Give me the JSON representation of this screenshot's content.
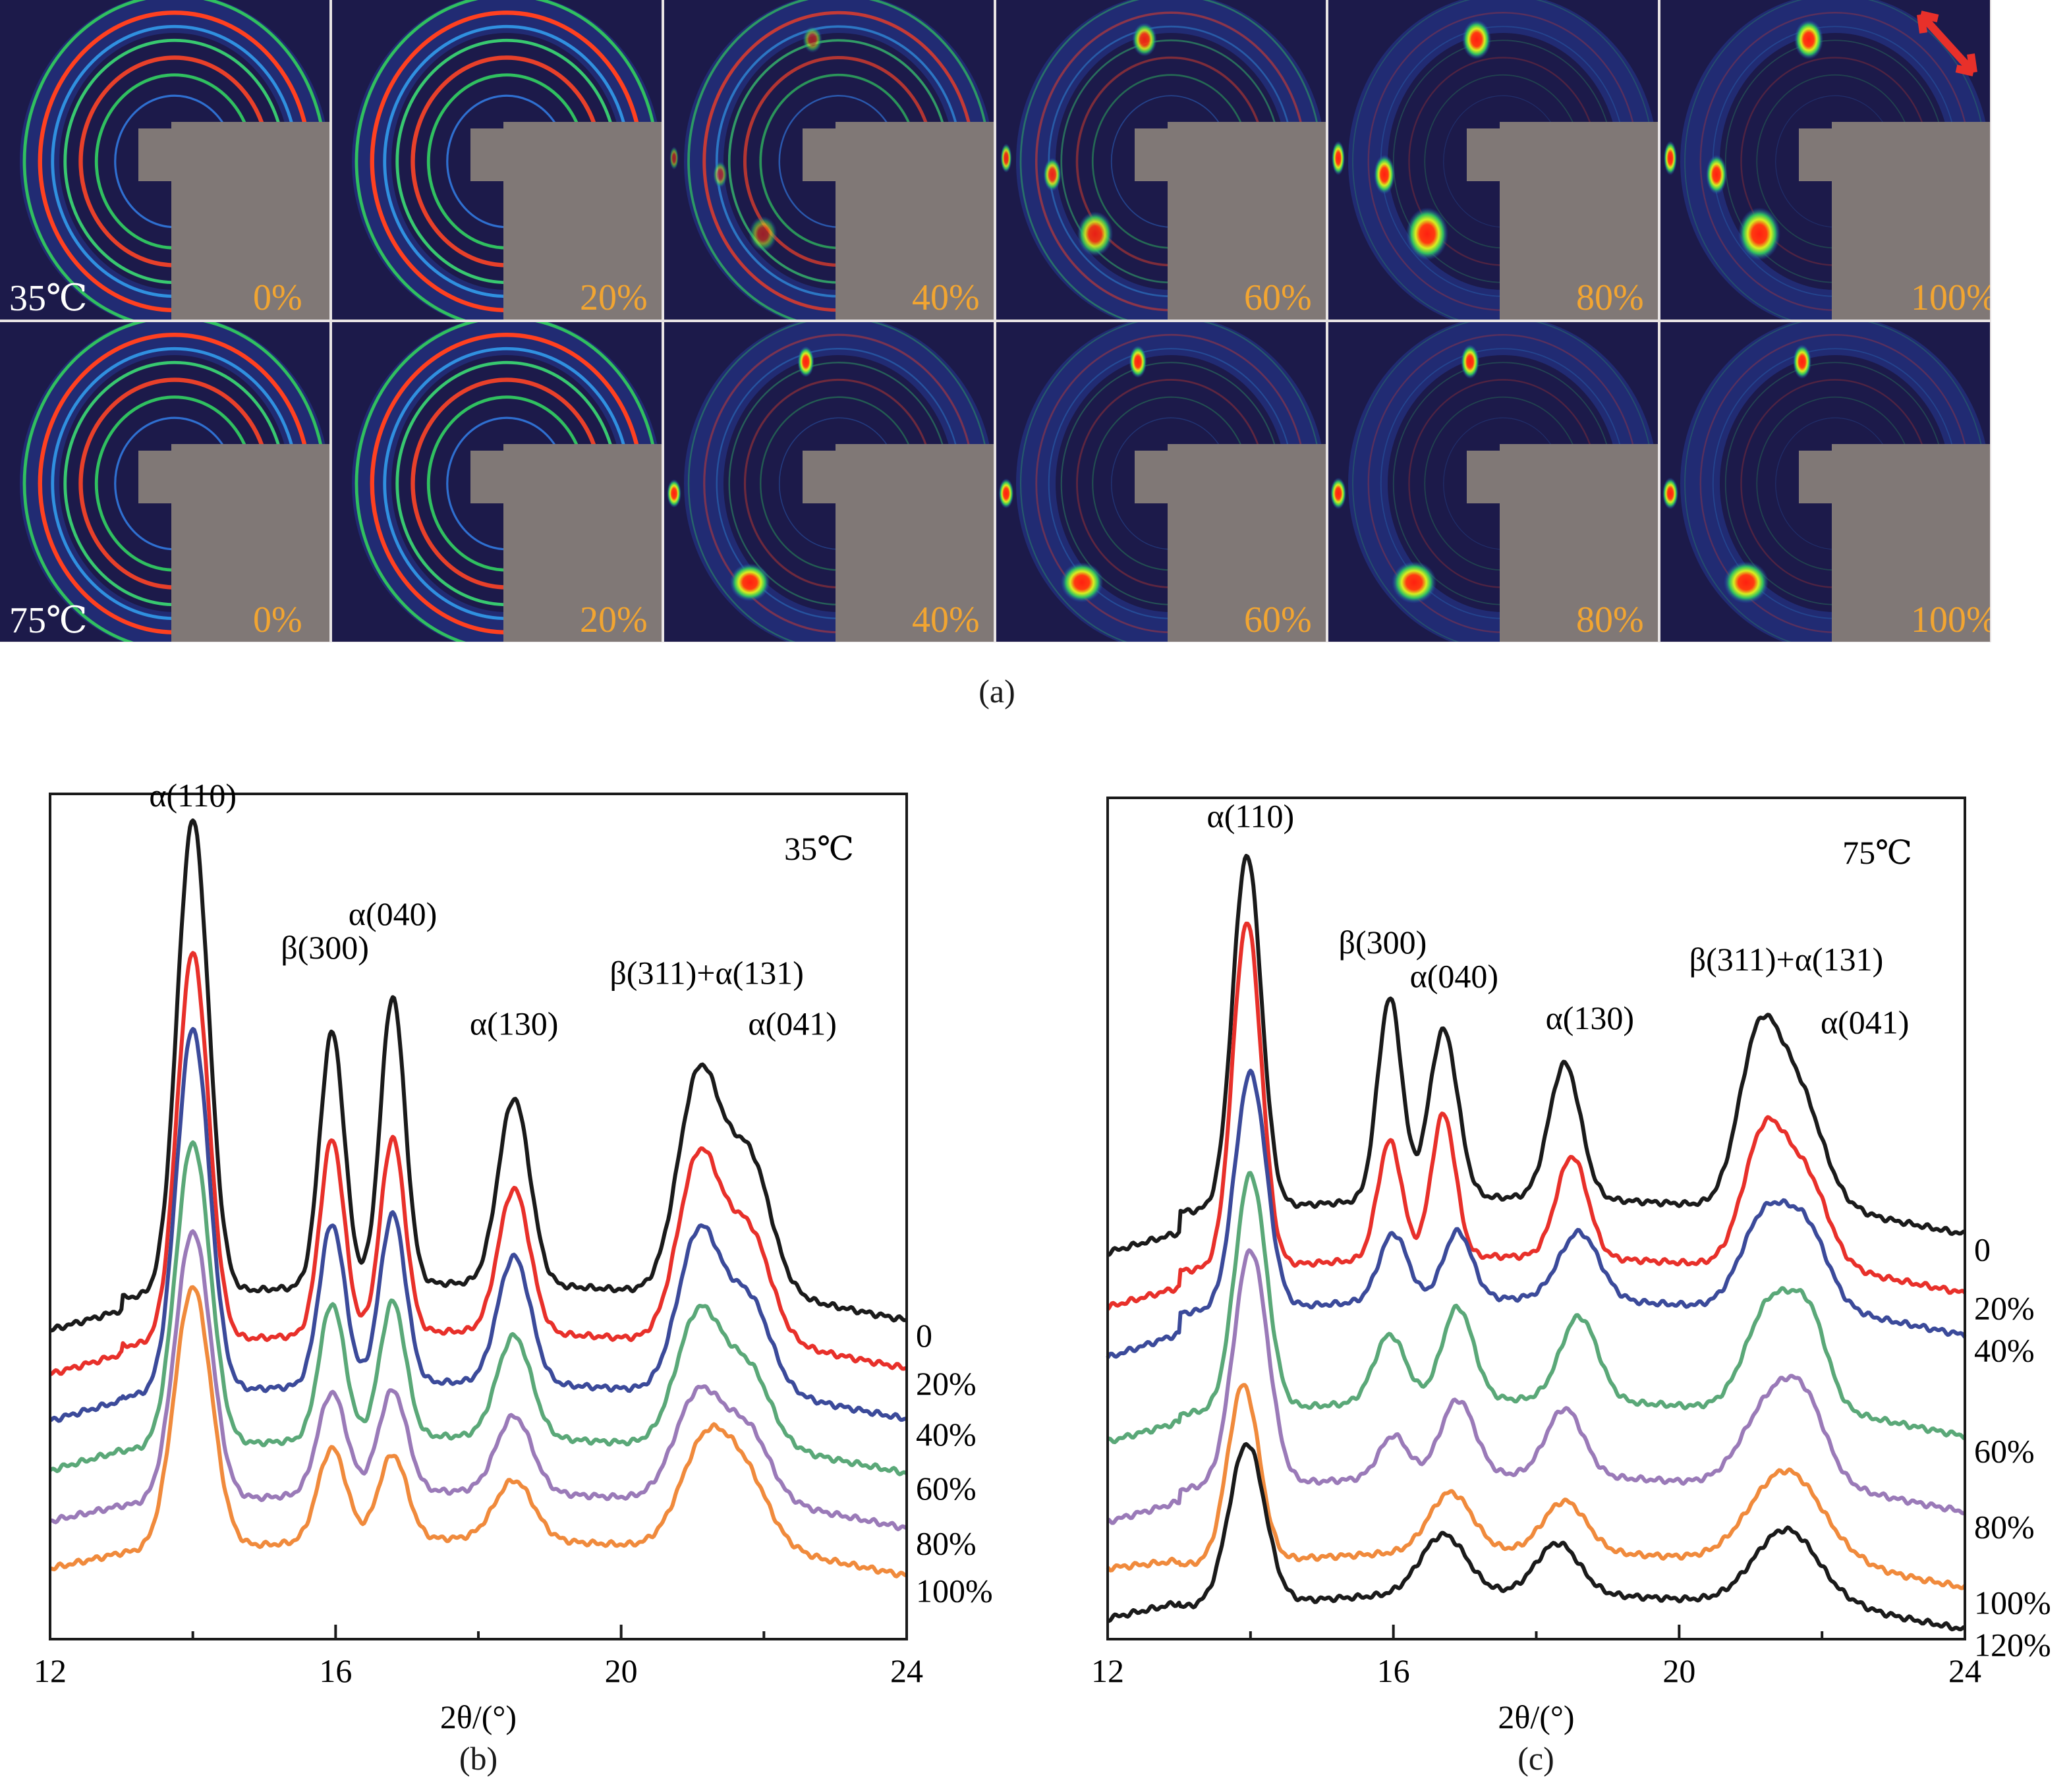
{
  "figure": {
    "panel_a_caption": "(a)",
    "panel_b_caption": "(b)",
    "panel_c_caption": "(c)"
  },
  "waxd_grid": {
    "rows": [
      {
        "temperature": "35℃",
        "panels": [
          {
            "strain": "0%",
            "pattern": "rings",
            "spots": 0.0
          },
          {
            "strain": "20%",
            "pattern": "rings",
            "spots": 0.0
          },
          {
            "strain": "40%",
            "pattern": "mixed",
            "spots": 0.35
          },
          {
            "strain": "60%",
            "pattern": "spots",
            "spots": 0.7
          },
          {
            "strain": "80%",
            "pattern": "spots",
            "spots": 1.0
          },
          {
            "strain": "100%",
            "pattern": "spots",
            "spots": 1.0,
            "stretch_arrow": true
          }
        ]
      },
      {
        "temperature": "75℃",
        "panels": [
          {
            "strain": "0%",
            "pattern": "rings",
            "spots": 0.0
          },
          {
            "strain": "20%",
            "pattern": "rings",
            "spots": 0.0
          },
          {
            "strain": "40%",
            "pattern": "spots",
            "spots": 0.8
          },
          {
            "strain": "60%",
            "pattern": "spots",
            "spots": 0.9
          },
          {
            "strain": "80%",
            "pattern": "spots",
            "spots": 1.0
          },
          {
            "strain": "100%",
            "pattern": "spots",
            "spots": 1.0
          }
        ]
      }
    ],
    "colors": {
      "stretch_arrow": "#e8302a",
      "strain_label": "#f2a531",
      "beamstop": "#807876"
    }
  },
  "chart_data": [
    {
      "id": "b",
      "type": "line",
      "title": "35℃",
      "xlabel": "2θ/(°)",
      "ylabel": "",
      "xlim": [
        12,
        24
      ],
      "ylim": [
        0,
        100
      ],
      "y_units": "a.u. (stacked, offset)",
      "xticks_major": [
        12,
        16,
        20,
        24
      ],
      "xticks_minor": [
        14,
        18,
        22
      ],
      "xtick_labels": [
        "12",
        "16",
        "20",
        "24"
      ],
      "grid": false,
      "annotations": [
        {
          "text": "α(110)",
          "x": 14.0,
          "y": 98.5
        },
        {
          "text": "β(300)",
          "x": 15.85,
          "y": 80.5
        },
        {
          "text": "α(040)",
          "x": 16.8,
          "y": 84.5
        },
        {
          "text": "α(130)",
          "x": 18.5,
          "y": 71.5
        },
        {
          "text": "β(311)+α(131)",
          "x": 21.2,
          "y": 77.5
        },
        {
          "text": "α(041)",
          "x": 22.4,
          "y": 71.5
        }
      ],
      "series": [
        {
          "name": "0",
          "color": "#1a1a1a",
          "baseline": 39.6,
          "peaks": [
            [
              14.0,
              56,
              0.22
            ],
            [
              15.95,
              30,
              0.17
            ],
            [
              16.8,
              34,
              0.17
            ],
            [
              18.5,
              22,
              0.22
            ],
            [
              21.1,
              26,
              0.3
            ],
            [
              21.8,
              16,
              0.3
            ]
          ],
          "edge": [
            [
              12.0,
              -3.5
            ],
            [
              13.0,
              -1.5
            ]
          ]
        },
        {
          "name": "20%",
          "color": "#e8302a",
          "baseline": 33.9,
          "peaks": [
            [
              14.0,
              46,
              0.22
            ],
            [
              15.95,
              23,
              0.17
            ],
            [
              16.8,
              23,
              0.17
            ],
            [
              18.5,
              17,
              0.22
            ],
            [
              21.1,
              22,
              0.3
            ],
            [
              21.8,
              13,
              0.3
            ]
          ],
          "edge": [
            [
              12.0,
              -3.0
            ],
            [
              13.0,
              -1.0
            ]
          ]
        },
        {
          "name": "40%",
          "color": "#3b4a9a",
          "baseline": 27.9,
          "peaks": [
            [
              14.0,
              43,
              0.23
            ],
            [
              15.95,
              19,
              0.18
            ],
            [
              16.8,
              20,
              0.18
            ],
            [
              18.5,
              15,
              0.23
            ],
            [
              21.1,
              19,
              0.3
            ],
            [
              21.8,
              11,
              0.3
            ]
          ],
          "edge": [
            [
              12.0,
              -2.5
            ],
            [
              13.0,
              -0.5
            ]
          ]
        },
        {
          "name": "60%",
          "color": "#5aa878",
          "baseline": 21.5,
          "peaks": [
            [
              14.0,
              36,
              0.24
            ],
            [
              15.95,
              16,
              0.18
            ],
            [
              16.8,
              16,
              0.18
            ],
            [
              18.5,
              12,
              0.24
            ],
            [
              21.1,
              16,
              0.32
            ],
            [
              21.8,
              9,
              0.3
            ]
          ],
          "edge": [
            [
              12.0,
              -2.0
            ],
            [
              13.0,
              0.0
            ]
          ]
        },
        {
          "name": "80%",
          "color": "#9a7ab8",
          "baseline": 15.0,
          "peaks": [
            [
              14.0,
              32,
              0.25
            ],
            [
              15.95,
              12,
              0.2
            ],
            [
              16.8,
              12,
              0.2
            ],
            [
              18.5,
              9,
              0.25
            ],
            [
              21.1,
              13,
              0.34
            ],
            [
              21.8,
              8,
              0.3
            ]
          ],
          "edge": [
            [
              12.0,
              -1.5
            ],
            [
              13.0,
              0.0
            ]
          ]
        },
        {
          "name": "100%",
          "color": "#f08a3c",
          "baseline": 9.4,
          "peaks": [
            [
              14.0,
              31,
              0.26
            ],
            [
              15.95,
              11,
              0.2
            ],
            [
              16.8,
              10,
              0.2
            ],
            [
              18.5,
              7,
              0.27
            ],
            [
              21.2,
              13,
              0.36
            ],
            [
              21.8,
              7,
              0.32
            ]
          ],
          "edge": [
            [
              12.0,
              -1.5
            ],
            [
              13.0,
              0.0
            ]
          ]
        }
      ]
    },
    {
      "id": "c",
      "type": "line",
      "title": "75℃",
      "xlabel": "2θ/(°)",
      "ylabel": "",
      "xlim": [
        12,
        24
      ],
      "ylim": [
        0,
        100
      ],
      "y_units": "a.u. (stacked, offset)",
      "xticks_major": [
        12,
        16,
        20,
        24
      ],
      "xticks_minor": [
        14,
        18,
        22
      ],
      "xtick_labels": [
        "12",
        "16",
        "20",
        "24"
      ],
      "grid": false,
      "annotations": [
        {
          "text": "α(110)",
          "x": 14.0,
          "y": 96.5
        },
        {
          "text": "β(300)",
          "x": 15.85,
          "y": 81.5
        },
        {
          "text": "α(040)",
          "x": 16.85,
          "y": 77.5
        },
        {
          "text": "α(130)",
          "x": 18.75,
          "y": 72.5
        },
        {
          "text": "β(311)+α(131)",
          "x": 21.5,
          "y": 79.5
        },
        {
          "text": "α(041)",
          "x": 22.6,
          "y": 72.0
        }
      ],
      "series": [
        {
          "name": "0",
          "color": "#1a1a1a",
          "baseline": 50.0,
          "peaks": [
            [
              13.95,
              42,
              0.2
            ],
            [
              15.95,
              24,
              0.17
            ],
            [
              16.7,
              20,
              0.2
            ],
            [
              18.4,
              16,
              0.22
            ],
            [
              21.1,
              18,
              0.28
            ],
            [
              21.65,
              14,
              0.35
            ]
          ],
          "edge": [
            [
              12.0,
              -4.5
            ],
            [
              13.0,
              -2.5
            ]
          ]
        },
        {
          "name": "20%",
          "color": "#e8302a",
          "baseline": 43.0,
          "peaks": [
            [
              13.95,
              41,
              0.2
            ],
            [
              15.95,
              14,
              0.17
            ],
            [
              16.7,
              17,
              0.17
            ],
            [
              18.5,
              12,
              0.22
            ],
            [
              21.2,
              16,
              0.3
            ],
            [
              21.8,
              10,
              0.3
            ]
          ],
          "edge": [
            [
              12.0,
              -4.0
            ],
            [
              13.0,
              -2.0
            ]
          ]
        },
        {
          "name": "40%",
          "color": "#3b4a9a",
          "baseline": 38.0,
          "peaks": [
            [
              14.0,
              28,
              0.22
            ],
            [
              16.0,
              8,
              0.2
            ],
            [
              16.9,
              8,
              0.2
            ],
            [
              18.6,
              8,
              0.28
            ],
            [
              21.2,
              11,
              0.33
            ],
            [
              21.8,
              9,
              0.3
            ]
          ],
          "edge": [
            [
              12.0,
              -5.0
            ],
            [
              13.0,
              -2.5
            ]
          ]
        },
        {
          "name": "60%",
          "color": "#5aa878",
          "baseline": 26.0,
          "peaks": [
            [
              14.0,
              28,
              0.22
            ],
            [
              15.95,
              8,
              0.22
            ],
            [
              16.9,
              11,
              0.22
            ],
            [
              18.6,
              10,
              0.26
            ],
            [
              21.3,
              13,
              0.35
            ],
            [
              21.85,
              9,
              0.25
            ]
          ],
          "edge": [
            [
              12.0,
              -3.0
            ],
            [
              13.0,
              -1.0
            ]
          ]
        },
        {
          "name": "80%",
          "color": "#9a7ab8",
          "baseline": 17.0,
          "peaks": [
            [
              14.0,
              28,
              0.24
            ],
            [
              16.0,
              5,
              0.2
            ],
            [
              16.9,
              9,
              0.24
            ],
            [
              18.4,
              8,
              0.26
            ],
            [
              21.3,
              10,
              0.4
            ],
            [
              21.8,
              7,
              0.3
            ]
          ],
          "edge": [
            [
              12.0,
              -3.5
            ],
            [
              13.0,
              -1.5
            ]
          ]
        },
        {
          "name": "100%",
          "color": "#f08a3c",
          "baseline": 8.0,
          "peaks": [
            [
              13.9,
              21,
              0.22
            ],
            [
              16.8,
              7,
              0.3
            ],
            [
              18.4,
              6,
              0.3
            ],
            [
              21.5,
              11,
              0.5
            ]
          ],
          "edge": [
            [
              12.0,
              0.0
            ],
            [
              13.0,
              0.5
            ]
          ]
        },
        {
          "name": "120%",
          "color": "#1a1a1a",
          "baseline": 3.0,
          "peaks": [
            [
              13.95,
              19,
              0.25
            ],
            [
              16.7,
              7,
              0.32
            ],
            [
              18.3,
              6,
              0.3
            ],
            [
              21.5,
              9,
              0.45
            ]
          ],
          "edge": [
            [
              12.0,
              -1.0
            ],
            [
              13.0,
              0.5
            ]
          ]
        }
      ]
    }
  ]
}
